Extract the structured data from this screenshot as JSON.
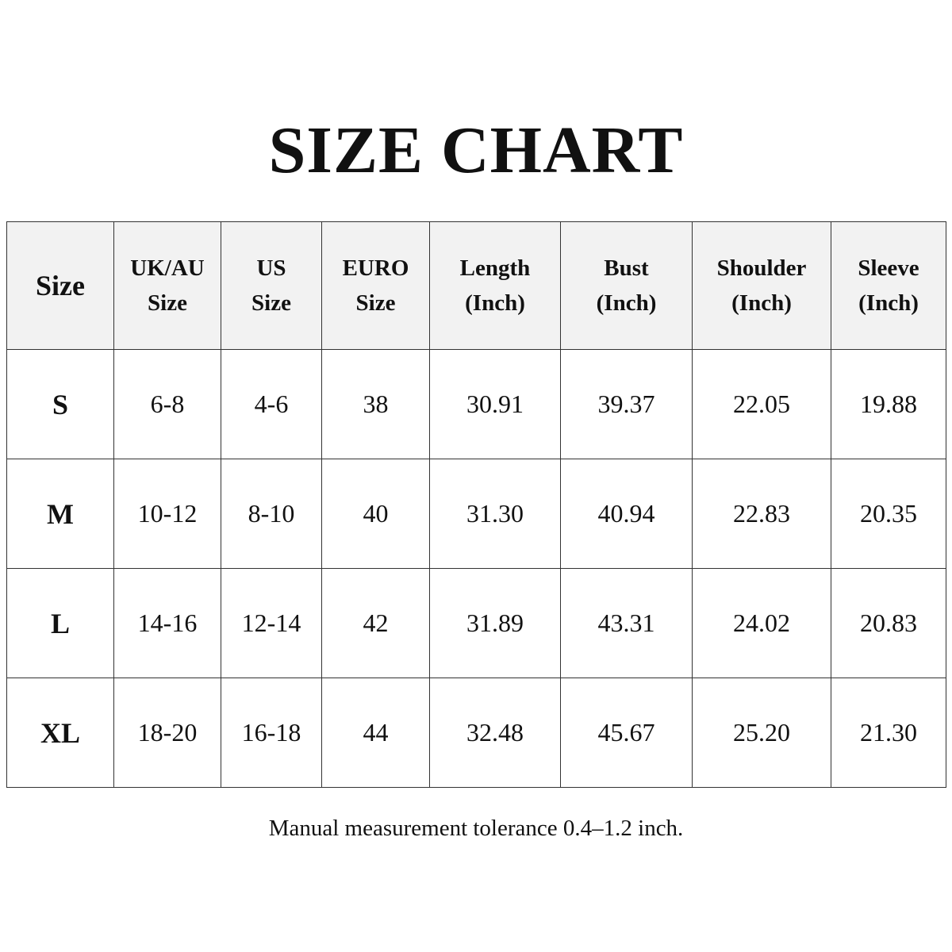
{
  "title": "SIZE CHART",
  "table": {
    "header": [
      [
        "Size"
      ],
      [
        "UK/AU",
        "Size"
      ],
      [
        "US",
        "Size"
      ],
      [
        "EURO",
        "Size"
      ],
      [
        "Length",
        "(Inch)"
      ],
      [
        "Bust",
        "(Inch)"
      ],
      [
        "Shoulder",
        "(Inch)"
      ],
      [
        "Sleeve",
        "(Inch)"
      ]
    ],
    "rows": [
      [
        "S",
        "6-8",
        "4-6",
        "38",
        "30.91",
        "39.37",
        "22.05",
        "19.88"
      ],
      [
        "M",
        "10-12",
        "8-10",
        "40",
        "31.30",
        "40.94",
        "22.83",
        "20.35"
      ],
      [
        "L",
        "14-16",
        "12-14",
        "42",
        "31.89",
        "43.31",
        "24.02",
        "20.83"
      ],
      [
        "XL",
        "18-20",
        "16-18",
        "44",
        "32.48",
        "45.67",
        "25.20",
        "21.30"
      ]
    ]
  },
  "note": "Manual measurement tolerance 0.4–1.2 inch."
}
